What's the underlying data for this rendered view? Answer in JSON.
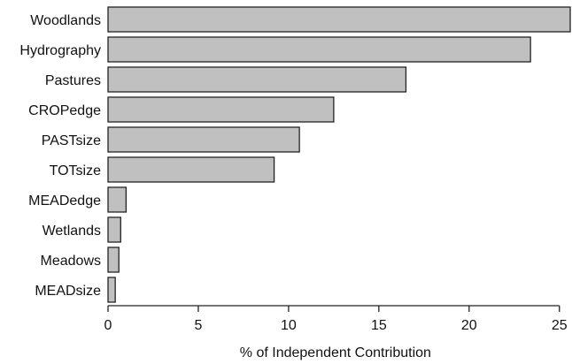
{
  "chart_data": {
    "type": "bar",
    "orientation": "horizontal",
    "categories": [
      "Woodlands",
      "Hydrography",
      "Pastures",
      "CROPedge",
      "PASTsize",
      "TOTsize",
      "MEADedge",
      "Wetlands",
      "Meadows",
      "MEADsize"
    ],
    "values": [
      25.6,
      23.4,
      16.5,
      12.5,
      10.6,
      9.2,
      1.0,
      0.7,
      0.6,
      0.4
    ],
    "xlabel": "% of Independent Contribution",
    "ylabel": "",
    "xlim": [
      0,
      25.6
    ],
    "xticks": [
      0,
      5,
      10,
      15,
      20,
      25
    ],
    "grid": false,
    "colors": {
      "bar_fill": "#c0c0c0",
      "bar_stroke": "#222222"
    }
  }
}
